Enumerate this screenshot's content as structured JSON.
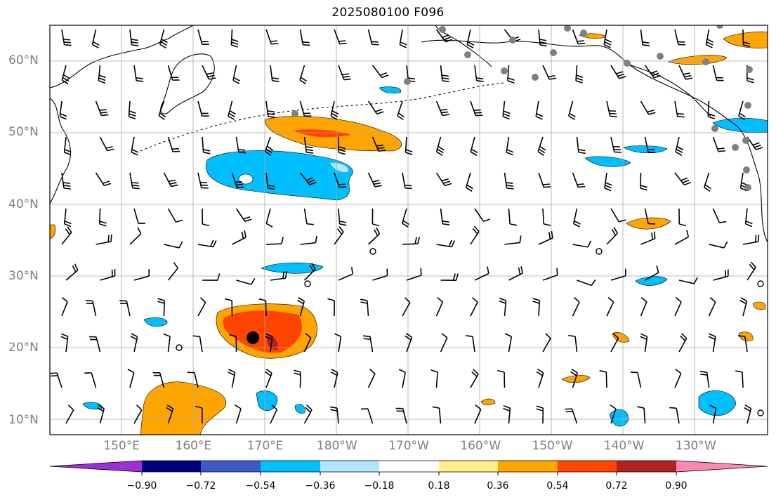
{
  "title": "2025080100 F096",
  "map": {
    "lat_labels": [
      {
        "text": "60°N",
        "lat": 60
      },
      {
        "text": "50°N",
        "lat": 50
      },
      {
        "text": "40°N",
        "lat": 40
      },
      {
        "text": "30°N",
        "lat": 30
      },
      {
        "text": "20°N",
        "lat": 20
      },
      {
        "text": "10°N",
        "lat": 10
      }
    ],
    "lon_labels": [
      {
        "text": "150°E",
        "lon": 150
      },
      {
        "text": "160°E",
        "lon": 160
      },
      {
        "text": "170°E",
        "lon": 170
      },
      {
        "text": "180°W",
        "lon": 180
      },
      {
        "text": "170°W",
        "lon": 190
      },
      {
        "text": "160°W",
        "lon": 200
      },
      {
        "text": "150°W",
        "lon": 210
      },
      {
        "text": "140°W",
        "lon": 220
      },
      {
        "text": "130°W",
        "lon": 230
      }
    ],
    "extent": {
      "lon_min": 140,
      "lon_max": 240,
      "lat_min": 8,
      "lat_max": 65
    },
    "marker": {
      "lon": 168.3,
      "lat": 21.5
    }
  },
  "colorbar": {
    "ticks": [
      "−0.90",
      "−0.72",
      "−0.54",
      "−0.36",
      "−0.18",
      "0.18",
      "0.36",
      "0.54",
      "0.72",
      "0.90"
    ],
    "colors": {
      "under": "#9b30d8",
      "lt_m090": "#000080",
      "m090_m072": "#3a5cc8",
      "m072_m054": "#3a5cc8",
      "m054_m036": "#00bfff",
      "m036_m018": "#b3e5ff",
      "m018_p018": "#ffffff",
      "p018_p036": "#fff08a",
      "p036_p054": "#ffa500",
      "p054_p072": "#ff4500",
      "p072_p090": "#b22222",
      "over": "#ff88b0"
    }
  }
}
